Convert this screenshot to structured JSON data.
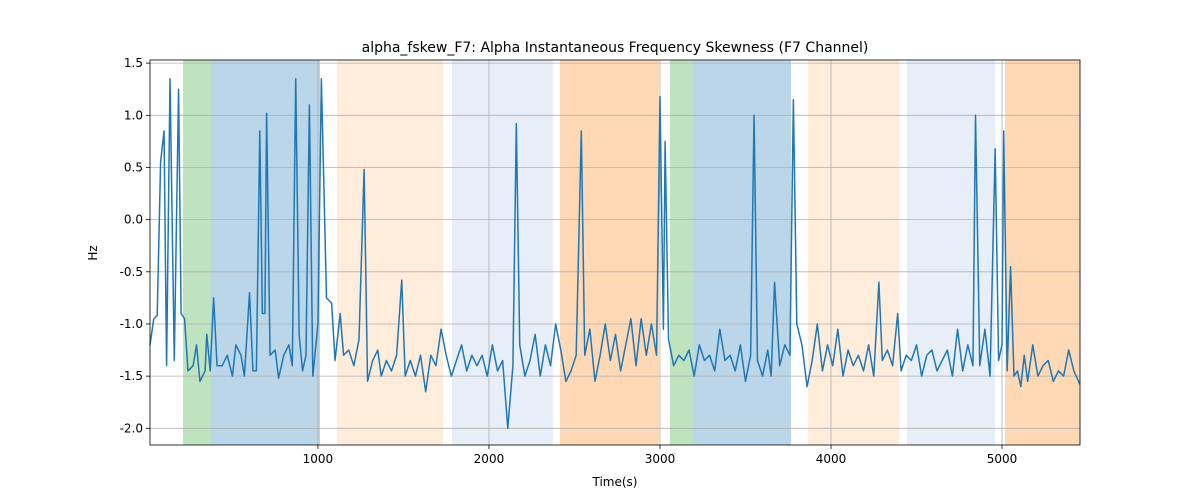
{
  "chart_data": {
    "type": "line",
    "title": "alpha_fskew_F7: Alpha Instantaneous Frequency Skewness (F7 Channel)",
    "x_label": "Time(s)",
    "y_label": "Hz",
    "xlim": [
      18,
      5456
    ],
    "ylim": [
      -2.16,
      1.53
    ],
    "xticks": [
      1000,
      2000,
      3000,
      4000,
      5000
    ],
    "yticks": [
      {
        "value": -2,
        "label": "-2.0"
      },
      {
        "value": -1.5,
        "label": "-1.5"
      },
      {
        "value": -1,
        "label": "-1.0"
      },
      {
        "value": -0.5,
        "label": "-0.5"
      },
      {
        "value": 0,
        "label": "0.0"
      },
      {
        "value": 0.5,
        "label": "0.5"
      },
      {
        "value": 1,
        "label": "1.0"
      },
      {
        "value": 1.5,
        "label": "1.5"
      }
    ],
    "grid": true,
    "regions": [
      {
        "start": 211,
        "end": 374,
        "color": "#2ca02c",
        "opacity": 0.3
      },
      {
        "start": 374,
        "end": 1012,
        "color": "#1f77b4",
        "opacity": 0.3
      },
      {
        "start": 1111,
        "end": 1731,
        "color": "#ff7f0e",
        "opacity": 0.15
      },
      {
        "start": 1784,
        "end": 2374,
        "color": "#aec7e8",
        "opacity": 0.3
      },
      {
        "start": 2415,
        "end": 2994,
        "color": "#ff7f0e",
        "opacity": 0.3
      },
      {
        "start": 3058,
        "end": 3193,
        "color": "#2ca02c",
        "opacity": 0.3
      },
      {
        "start": 3193,
        "end": 3766,
        "color": "#1f77b4",
        "opacity": 0.3
      },
      {
        "start": 3865,
        "end": 4398,
        "color": "#ff7f0e",
        "opacity": 0.15
      },
      {
        "start": 4444,
        "end": 4959,
        "color": "#aec7e8",
        "opacity": 0.3
      },
      {
        "start": 5018,
        "end": 5456,
        "color": "#ff7f0e",
        "opacity": 0.3
      }
    ],
    "x": [
      18,
      40,
      60,
      80,
      100,
      115,
      135,
      160,
      185,
      200,
      220,
      240,
      270,
      290,
      310,
      340,
      350,
      370,
      390,
      410,
      440,
      470,
      500,
      520,
      550,
      570,
      600,
      620,
      640,
      660,
      675,
      690,
      700,
      720,
      750,
      770,
      800,
      830,
      850,
      870,
      890,
      910,
      930,
      950,
      970,
      1000,
      1020,
      1050,
      1080,
      1100,
      1130,
      1150,
      1180,
      1210,
      1240,
      1270,
      1290,
      1320,
      1350,
      1370,
      1400,
      1430,
      1460,
      1490,
      1510,
      1540,
      1570,
      1600,
      1630,
      1660,
      1690,
      1720,
      1750,
      1780,
      1810,
      1840,
      1870,
      1900,
      1930,
      1960,
      1990,
      2020,
      2050,
      2080,
      2110,
      2140,
      2160,
      2180,
      2210,
      2240,
      2270,
      2300,
      2330,
      2360,
      2390,
      2420,
      2450,
      2480,
      2510,
      2540,
      2560,
      2590,
      2620,
      2650,
      2680,
      2710,
      2740,
      2770,
      2800,
      2830,
      2860,
      2890,
      2920,
      2950,
      2980,
      3000,
      3020,
      3030,
      3050,
      3080,
      3110,
      3140,
      3170,
      3200,
      3230,
      3260,
      3290,
      3320,
      3350,
      3380,
      3410,
      3440,
      3470,
      3500,
      3530,
      3550,
      3570,
      3600,
      3630,
      3650,
      3670,
      3700,
      3730,
      3760,
      3780,
      3800,
      3830,
      3860,
      3890,
      3920,
      3950,
      3980,
      4010,
      4040,
      4070,
      4100,
      4130,
      4160,
      4190,
      4220,
      4250,
      4280,
      4300,
      4330,
      4360,
      4390,
      4410,
      4440,
      4470,
      4500,
      4530,
      4560,
      4590,
      4620,
      4650,
      4680,
      4710,
      4740,
      4770,
      4800,
      4830,
      4845,
      4870,
      4900,
      4930,
      4960,
      4980,
      5000,
      5010,
      5030,
      5050,
      5070,
      5090,
      5110,
      5130,
      5150,
      5180,
      5210,
      5240,
      5270,
      5300,
      5330,
      5360,
      5390,
      5420,
      5456
    ],
    "series": [
      {
        "color": "#1f77b4",
        "values": [
          -1.2,
          -0.95,
          -0.92,
          0.55,
          0.85,
          -1.4,
          1.35,
          -1.35,
          1.25,
          -0.9,
          -0.95,
          -1.45,
          -1.4,
          -1.2,
          -1.55,
          -1.45,
          -1.1,
          -1.45,
          -0.75,
          -1.4,
          -1.4,
          -1.3,
          -1.5,
          -1.2,
          -1.3,
          -1.5,
          -0.7,
          -1.45,
          -1.45,
          0.85,
          -0.9,
          -0.9,
          1.02,
          -1.3,
          -1.25,
          -1.52,
          -1.3,
          -1.2,
          -1.4,
          1.35,
          -1.1,
          -1.45,
          -1.3,
          1.1,
          -1.5,
          -1.0,
          1.35,
          -0.75,
          -0.8,
          -1.35,
          -0.9,
          -1.3,
          -1.25,
          -1.4,
          -1.15,
          0.48,
          -1.55,
          -1.35,
          -1.25,
          -1.5,
          -1.35,
          -1.45,
          -1.3,
          -0.58,
          -1.5,
          -1.35,
          -1.5,
          -1.3,
          -1.65,
          -1.3,
          -1.4,
          -1.05,
          -1.3,
          -1.5,
          -1.35,
          -1.2,
          -1.45,
          -1.3,
          -1.4,
          -1.3,
          -1.5,
          -1.2,
          -1.45,
          -1.35,
          -2.0,
          -1.4,
          0.92,
          -1.2,
          -1.5,
          -1.35,
          -1.1,
          -1.5,
          -1.2,
          -1.4,
          -1.0,
          -1.25,
          -1.55,
          -1.45,
          -1.3,
          0.85,
          -1.3,
          -1.05,
          -1.55,
          -1.3,
          -1.0,
          -1.35,
          -1.1,
          -1.45,
          -1.2,
          -0.95,
          -1.4,
          -0.95,
          -1.3,
          -1.0,
          -1.3,
          1.18,
          -1.05,
          0.75,
          -1.15,
          -1.4,
          -1.3,
          -1.35,
          -1.25,
          -1.5,
          -1.2,
          -1.35,
          -1.3,
          -1.45,
          -1.05,
          -1.35,
          -1.3,
          -1.45,
          -1.2,
          -1.55,
          -1.3,
          1.0,
          -1.35,
          -1.5,
          -1.25,
          -1.5,
          -0.6,
          -1.4,
          -1.2,
          -1.3,
          1.15,
          -1.0,
          -1.2,
          -1.6,
          -1.35,
          -1.0,
          -1.45,
          -1.2,
          -1.4,
          -1.05,
          -1.5,
          -1.25,
          -1.4,
          -1.3,
          -1.45,
          -1.2,
          -1.5,
          -0.6,
          -1.35,
          -1.25,
          -1.4,
          -0.9,
          -1.45,
          -1.3,
          -1.35,
          -1.2,
          -1.5,
          -1.3,
          -1.25,
          -1.45,
          -1.35,
          -1.25,
          -1.5,
          -1.05,
          -1.45,
          -1.2,
          -1.4,
          1.0,
          -1.4,
          -1.05,
          -1.5,
          0.68,
          -1.35,
          -1.2,
          0.85,
          -1.45,
          -0.45,
          -1.5,
          -1.45,
          -1.6,
          -1.3,
          -1.55,
          -1.2,
          -1.5,
          -1.4,
          -1.35,
          -1.55,
          -1.45,
          -1.5,
          -1.25,
          -1.45,
          -1.58
        ]
      }
    ]
  }
}
